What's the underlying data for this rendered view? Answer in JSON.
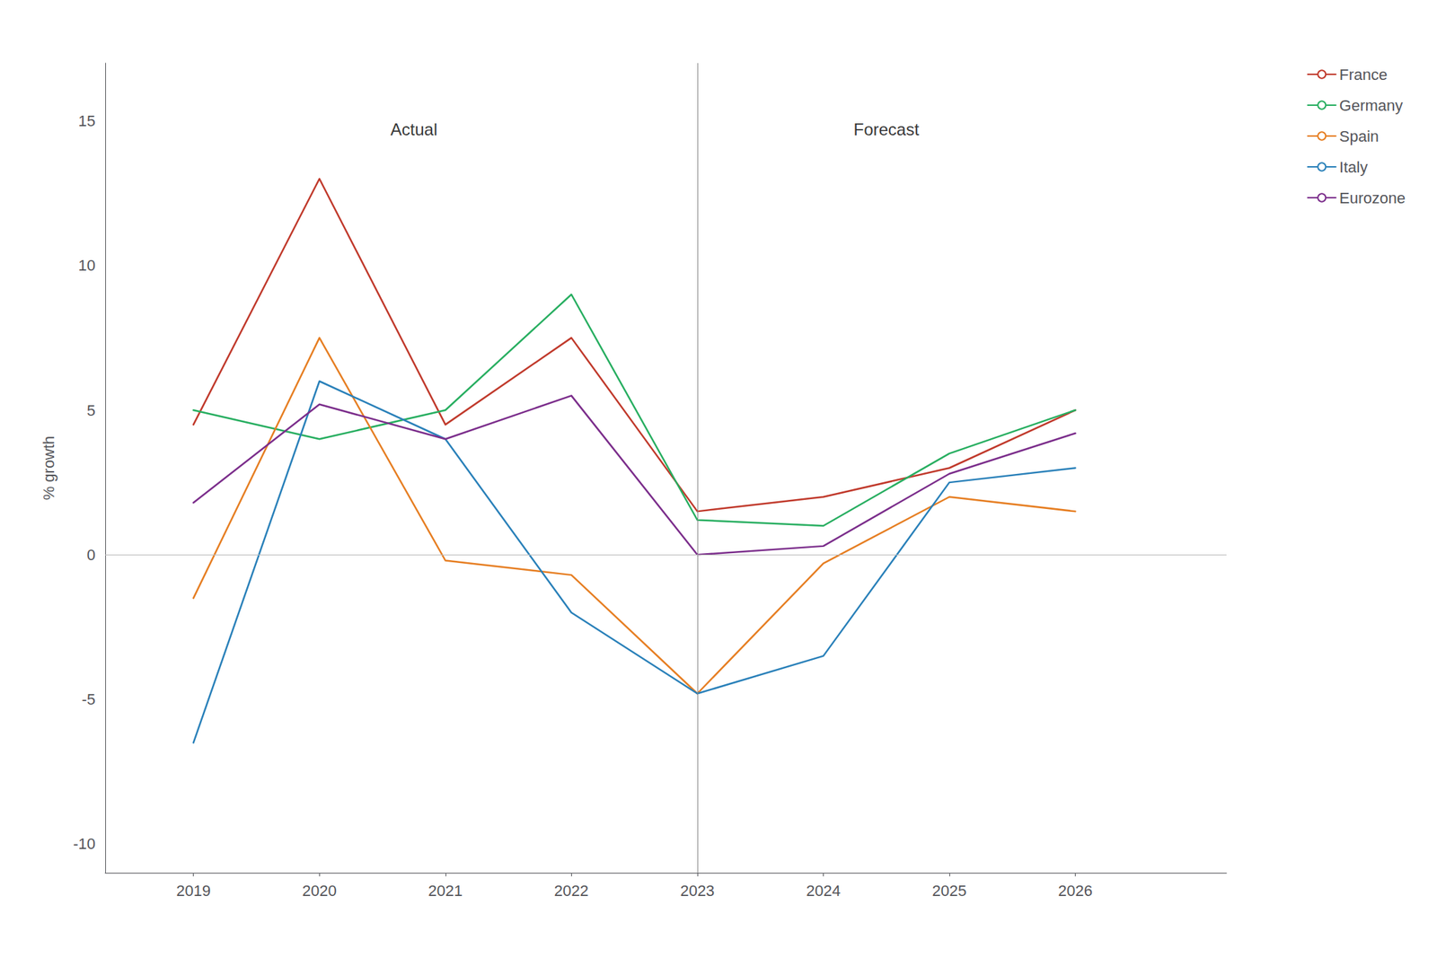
{
  "chart_data": {
    "type": "line",
    "ylabel": "% growth",
    "x": [
      2019,
      2020,
      2021,
      2022,
      2023,
      2024,
      2025,
      2026
    ],
    "series": [
      {
        "name": "France",
        "color": "#c0392b",
        "values": [
          4.5,
          13.0,
          4.5,
          7.5,
          1.5,
          2.0,
          3.0,
          5.0
        ]
      },
      {
        "name": "Germany",
        "color": "#27ae60",
        "values": [
          5.0,
          4.0,
          5.0,
          9.0,
          1.2,
          1.0,
          3.5,
          5.0
        ]
      },
      {
        "name": "Spain",
        "color": "#e67e22",
        "values": [
          -1.5,
          7.5,
          -0.2,
          -0.7,
          -4.8,
          -0.3,
          2.0,
          1.5
        ]
      },
      {
        "name": "Italy",
        "color": "#2980b9",
        "values": [
          -6.5,
          6.0,
          4.0,
          -2.0,
          -4.8,
          -3.5,
          2.5,
          3.0
        ]
      },
      {
        "name": "Eurozone",
        "color": "#7b2d8b",
        "values": [
          1.8,
          5.2,
          4.0,
          5.5,
          0.0,
          0.3,
          2.8,
          4.2
        ]
      }
    ],
    "xlim": [
      2018.3,
      2027.2
    ],
    "xticks": [
      2019,
      2020,
      2021,
      2022,
      2023,
      2024,
      2025,
      2026
    ],
    "ylim": [
      -11,
      17
    ],
    "yticks": [
      -10,
      -5,
      0,
      5,
      10,
      15
    ],
    "annotations": [
      {
        "text": "Actual",
        "x": 2020.75,
        "y": 15.0
      },
      {
        "text": "Forecast",
        "x": 2024.5,
        "y": 15.0
      }
    ],
    "reference_lines": [
      {
        "axis": "x",
        "value": 2023,
        "color": "#888888"
      },
      {
        "axis": "y",
        "value": 0,
        "color": "#bbbbbb"
      }
    ],
    "grid": false,
    "legend": "right"
  }
}
